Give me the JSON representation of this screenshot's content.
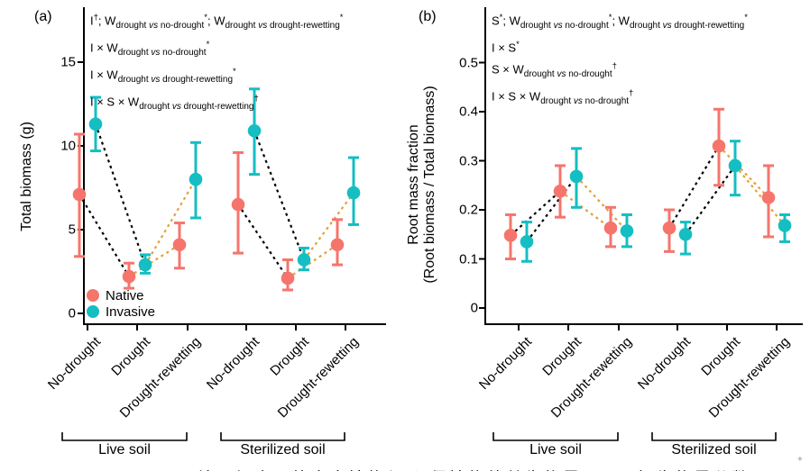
{
  "figure": {
    "panel_a_letter": "(a)",
    "panel_b_letter": "(b)",
    "caption_partial": "图  不同处理组合下的本土植物与 入侵植物的总生物量 (a) 及根生物量分数 (b)",
    "artifact_plus": "+"
  },
  "colors": {
    "native": "#F5756C",
    "invasive": "#14BEC3",
    "connector_black": "#000000",
    "connector_orange": "#E0A23C",
    "axis": "#000000"
  },
  "legend": {
    "items": [
      {
        "label": "Native",
        "color_key": "native"
      },
      {
        "label": "Invasive",
        "color_key": "invasive"
      }
    ]
  },
  "chart_data": [
    {
      "panel": "a",
      "type": "pointrange",
      "ylabel_lines": [
        "Total biomass (g)"
      ],
      "ylim": [
        0,
        15.5
      ],
      "yticks": [
        0,
        5,
        10,
        15
      ],
      "ytick_labels": [
        "0",
        "5",
        "10",
        "15"
      ],
      "grid": "off",
      "legend_position": "bottom-left-inside",
      "groups": [
        "Live soil",
        "Sterilized soil"
      ],
      "categories": [
        "No-drought",
        "Drought",
        "Drought-rewetting"
      ],
      "x_tick_labels": [
        "No-drought",
        "Drought",
        "Drought-rewetting",
        "No-drought",
        "Drought",
        "Drought-rewetting"
      ],
      "annotations": [
        "I^†^;  W_{drought vs no-drought}^*^;  W_{drought vs drought-rewetting}^*^",
        "I × W_{drought vs no-drought}^*^",
        "I × W_{drought vs drought-rewetting}^*^",
        "I × S × W_{drought vs drought-rewetting}^†^"
      ],
      "series": [
        {
          "name": "Native",
          "color_key": "native",
          "points": [
            {
              "group": "Live soil",
              "category": "No-drought",
              "y": 7.1,
              "lo": 3.4,
              "hi": 10.7
            },
            {
              "group": "Live soil",
              "category": "Drought",
              "y": 2.2,
              "lo": 1.5,
              "hi": 3.0
            },
            {
              "group": "Live soil",
              "category": "Drought-rewetting",
              "y": 4.1,
              "lo": 2.7,
              "hi": 5.4
            },
            {
              "group": "Sterilized soil",
              "category": "No-drought",
              "y": 6.5,
              "lo": 3.6,
              "hi": 9.6
            },
            {
              "group": "Sterilized soil",
              "category": "Drought",
              "y": 2.1,
              "lo": 1.4,
              "hi": 3.2
            },
            {
              "group": "Sterilized soil",
              "category": "Drought-rewetting",
              "y": 4.1,
              "lo": 2.9,
              "hi": 5.6
            }
          ]
        },
        {
          "name": "Invasive",
          "color_key": "invasive",
          "points": [
            {
              "group": "Live soil",
              "category": "No-drought",
              "y": 11.3,
              "lo": 9.7,
              "hi": 12.9
            },
            {
              "group": "Live soil",
              "category": "Drought",
              "y": 2.9,
              "lo": 2.4,
              "hi": 3.5
            },
            {
              "group": "Live soil",
              "category": "Drought-rewetting",
              "y": 8.0,
              "lo": 5.7,
              "hi": 10.2
            },
            {
              "group": "Sterilized soil",
              "category": "No-drought",
              "y": 10.9,
              "lo": 8.3,
              "hi": 13.4
            },
            {
              "group": "Sterilized soil",
              "category": "Drought",
              "y": 3.2,
              "lo": 2.6,
              "hi": 3.9
            },
            {
              "group": "Sterilized soil",
              "category": "Drought-rewetting",
              "y": 7.2,
              "lo": 5.3,
              "hi": 9.3
            }
          ]
        }
      ]
    },
    {
      "panel": "b",
      "type": "pointrange",
      "ylabel_lines": [
        "Root mass fraction",
        "(Root biomass / Total biomass)"
      ],
      "ylim": [
        0,
        0.54
      ],
      "yticks": [
        0,
        0.1,
        0.2,
        0.3,
        0.4,
        0.5
      ],
      "ytick_labels": [
        "0",
        "0.1",
        "0.2",
        "0.3",
        "0.4",
        "0.5"
      ],
      "grid": "off",
      "legend_position": "none",
      "groups": [
        "Live soil",
        "Sterilized soil"
      ],
      "categories": [
        "No-drought",
        "Drought",
        "Drought-rewetting"
      ],
      "x_tick_labels": [
        "No-drought",
        "Drought",
        "Drought-rewetting",
        "No-drought",
        "Drought",
        "Drought-rewetting"
      ],
      "annotations": [
        "S^*^;  W_{drought vs no-drought}^*^;  W_{drought vs drought-rewetting}^*^",
        "I × S^*^",
        "S × W_{drought vs no-drought}^†^",
        "I × S × W_{drought vs no-drought}^†^"
      ],
      "series": [
        {
          "name": "Native",
          "color_key": "native",
          "points": [
            {
              "group": "Live soil",
              "category": "No-drought",
              "y": 0.148,
              "lo": 0.1,
              "hi": 0.19
            },
            {
              "group": "Live soil",
              "category": "Drought",
              "y": 0.238,
              "lo": 0.185,
              "hi": 0.29
            },
            {
              "group": "Live soil",
              "category": "Drought-rewetting",
              "y": 0.163,
              "lo": 0.125,
              "hi": 0.205
            },
            {
              "group": "Sterilized soil",
              "category": "No-drought",
              "y": 0.163,
              "lo": 0.115,
              "hi": 0.2
            },
            {
              "group": "Sterilized soil",
              "category": "Drought",
              "y": 0.33,
              "lo": 0.25,
              "hi": 0.405
            },
            {
              "group": "Sterilized soil",
              "category": "Drought-rewetting",
              "y": 0.225,
              "lo": 0.145,
              "hi": 0.29
            }
          ]
        },
        {
          "name": "Invasive",
          "color_key": "invasive",
          "points": [
            {
              "group": "Live soil",
              "category": "No-drought",
              "y": 0.135,
              "lo": 0.095,
              "hi": 0.175
            },
            {
              "group": "Live soil",
              "category": "Drought",
              "y": 0.268,
              "lo": 0.205,
              "hi": 0.325
            },
            {
              "group": "Live soil",
              "category": "Drought-rewetting",
              "y": 0.157,
              "lo": 0.125,
              "hi": 0.19
            },
            {
              "group": "Sterilized soil",
              "category": "No-drought",
              "y": 0.15,
              "lo": 0.11,
              "hi": 0.175
            },
            {
              "group": "Sterilized soil",
              "category": "Drought",
              "y": 0.29,
              "lo": 0.23,
              "hi": 0.34
            },
            {
              "group": "Sterilized soil",
              "category": "Drought-rewetting",
              "y": 0.168,
              "lo": 0.135,
              "hi": 0.19
            }
          ]
        }
      ]
    }
  ]
}
